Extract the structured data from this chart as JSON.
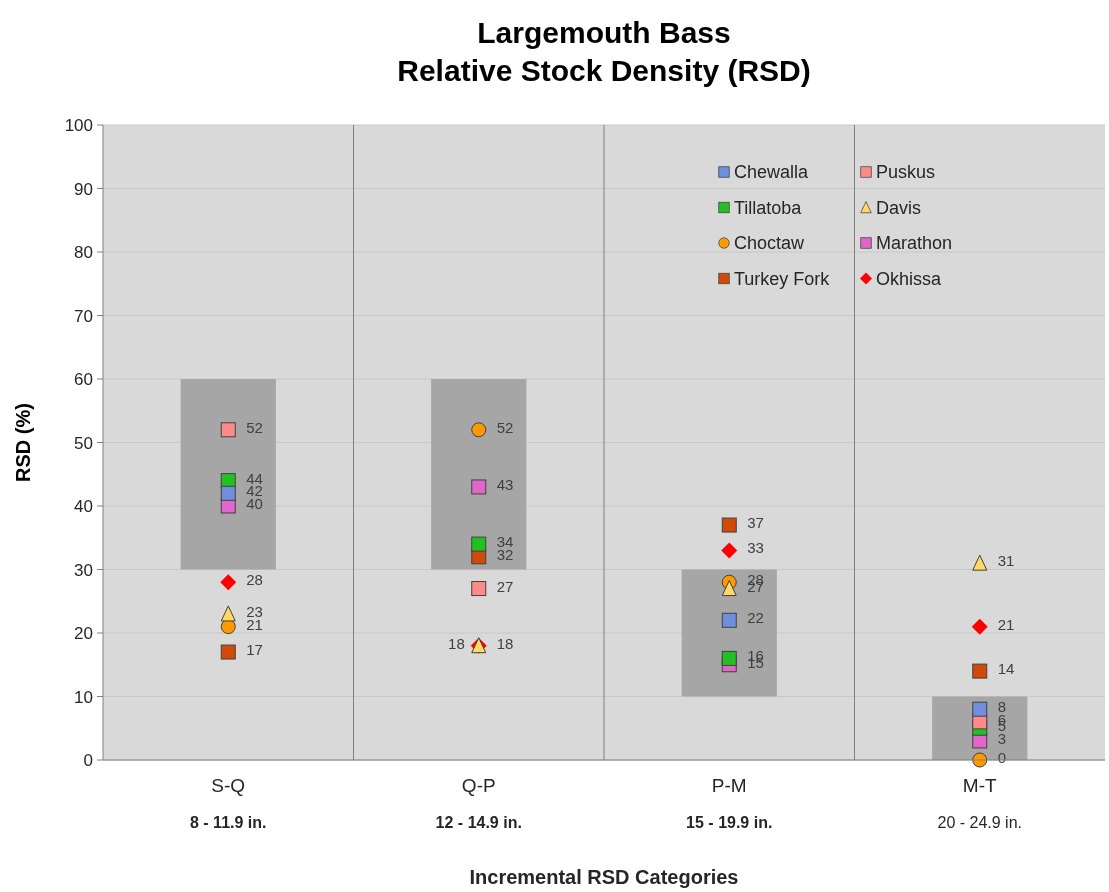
{
  "chart_data": {
    "type": "scatter",
    "title": "Largemouth Bass\nRelative Stock Density (RSD)",
    "xlabel": "Incremental RSD Categories",
    "ylabel": "RSD (%)",
    "categories": [
      "S-Q",
      "Q-P",
      "P-M",
      "M-T"
    ],
    "annotations": [
      "8 - 11.9 in.",
      "12 - 14.9 in.",
      "15 - 19.9 in.",
      "20 - 24.9 in."
    ],
    "ylim": [
      0,
      100
    ],
    "yticks": [
      0,
      10,
      20,
      30,
      40,
      50,
      60,
      70,
      80,
      90,
      100
    ],
    "grid": true,
    "legend": "top right",
    "series": [
      {
        "type": "bar",
        "color": "#a6a6a6",
        "base": [
          30,
          30,
          10,
          0
        ],
        "values": [
          30,
          30,
          20,
          10
        ]
      },
      {
        "name": "Chewalla",
        "color": "#6f8fdc",
        "marker": "square",
        "x": [
          "S-Q",
          "Q-P",
          "P-M",
          "M-T"
        ],
        "values": [
          42,
          null,
          22,
          8
        ],
        "value_labels": [
          "42",
          null,
          "22",
          "8"
        ]
      },
      {
        "name": "Puskus",
        "color": "#ff8a8a",
        "marker": "square",
        "x": [
          "S-Q",
          "Q-P",
          "P-M",
          "M-T"
        ],
        "values": [
          52,
          27,
          null,
          6
        ],
        "value_labels": [
          "52",
          "27",
          null,
          "6"
        ]
      },
      {
        "name": "Tillatoba",
        "color": "#22c022",
        "marker": "square",
        "x": [
          "S-Q",
          "Q-P",
          "P-M",
          "M-T"
        ],
        "values": [
          44,
          34,
          16,
          5
        ],
        "value_labels": [
          "44",
          "34",
          "16",
          "5"
        ]
      },
      {
        "name": "Davis",
        "color": "#ffd966",
        "marker": "triangle",
        "x": [
          "S-Q",
          "Q-P",
          "P-M",
          "M-T"
        ],
        "values": [
          23,
          18,
          27,
          31
        ],
        "value_labels": [
          "23",
          "18",
          "27",
          "31"
        ]
      },
      {
        "name": "Choctaw",
        "color": "#ff9900",
        "marker": "circle",
        "x": [
          "S-Q",
          "Q-P",
          "P-M",
          "M-T"
        ],
        "values": [
          21,
          52,
          28,
          0
        ],
        "value_labels": [
          "21",
          "52",
          "28",
          "0"
        ]
      },
      {
        "name": "Marathon",
        "color": "#e066cc",
        "marker": "square",
        "x": [
          "S-Q",
          "Q-P",
          "P-M",
          "M-T"
        ],
        "values": [
          40,
          43,
          15,
          3
        ],
        "value_labels": [
          "40",
          "43",
          "15",
          "3"
        ]
      },
      {
        "name": "Turkey Fork",
        "color": "#d24a0a",
        "marker": "square",
        "x": [
          "S-Q",
          "Q-P",
          "P-M",
          "M-T"
        ],
        "values": [
          17,
          32,
          37,
          14
        ],
        "value_labels": [
          "17",
          "32",
          "37",
          "14"
        ]
      },
      {
        "name": "Okhissa",
        "color": "#ff0000",
        "marker": "diamond",
        "x": [
          "S-Q",
          "Q-P",
          "P-M",
          "M-T"
        ],
        "values": [
          28,
          18,
          33,
          21
        ],
        "value_labels": [
          "28",
          "18",
          "33",
          "21"
        ]
      }
    ]
  }
}
